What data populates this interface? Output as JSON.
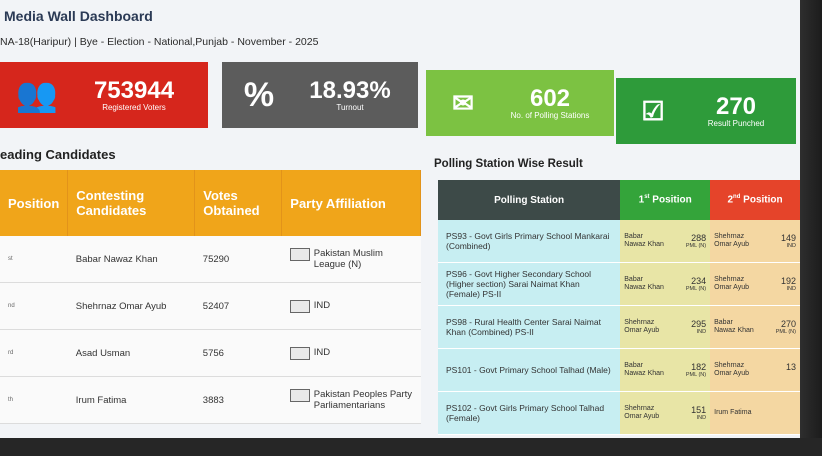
{
  "header": {
    "title": "Media Wall Dashboard",
    "subtitle": "NA-18(Haripur) | Bye - Election - National,Punjab - November - 2025"
  },
  "stats": [
    {
      "value": "753944",
      "label": "Registered Voters",
      "icon": "users-icon",
      "color": "#d6261c"
    },
    {
      "value": "18.93%",
      "label": "Turnout",
      "icon": "percent-icon",
      "color": "#5c5c5c"
    },
    {
      "value": "602",
      "label": "No. of Polling Stations",
      "icon": "ballot-box-icon",
      "color": "#7cc242"
    },
    {
      "value": "270",
      "label": "Result Punched",
      "icon": "clipboard-check-icon",
      "color": "#2e9b3a"
    }
  ],
  "candidates": {
    "title": "eading Candidates",
    "headers": [
      "Position",
      "Contesting Candidates",
      "Votes Obtained",
      "Party Affiliation"
    ],
    "rows": [
      {
        "position": "st",
        "name": "Babar Nawaz Khan",
        "votes": "75290",
        "party": "Pakistan Muslim League (N)"
      },
      {
        "position": "nd",
        "name": "Shehrnaz Omar Ayub",
        "votes": "52407",
        "party": "IND"
      },
      {
        "position": "rd",
        "name": "Asad Usman",
        "votes": "5756",
        "party": "IND"
      },
      {
        "position": "th",
        "name": "Irum Fatima",
        "votes": "3883",
        "party": "Pakistan Peoples Party Parliamentarians"
      }
    ]
  },
  "polling": {
    "title": "Polling Station Wise Result",
    "headers": {
      "station": "Polling Station",
      "first": "1",
      "first_sup": "st",
      "first_rest": " Position",
      "second": "2",
      "second_sup": "nd",
      "second_rest": " Position"
    },
    "rows": [
      {
        "station": "PS93 - Govt Girls Primary School Mankarai (Combined)",
        "p1_name": "Babar Nawaz Khan",
        "p1_votes": "288",
        "p1_party": "PML (N)",
        "p2_name": "Shehrnaz Omar Ayub",
        "p2_votes": "149",
        "p2_party": "IND"
      },
      {
        "station": "PS96 - Govt Higher Secondary School (Higher section) Sarai Naimat Khan (Female) PS-II",
        "p1_name": "Babar Nawaz Khan",
        "p1_votes": "234",
        "p1_party": "PML (N)",
        "p2_name": "Shehrnaz Omar Ayub",
        "p2_votes": "192",
        "p2_party": "IND"
      },
      {
        "station": "PS98 - Rural Health Center Sarai Naimat Khan (Combined) PS-II",
        "p1_name": "Shehrnaz Omar Ayub",
        "p1_votes": "295",
        "p1_party": "IND",
        "p2_name": "Babar Nawaz Khan",
        "p2_votes": "270",
        "p2_party": "PML (N)"
      },
      {
        "station": "PS101 - Govt Primary School Talhad (Male)",
        "p1_name": "Babar Nawaz Khan",
        "p1_votes": "182",
        "p1_party": "PML (N)",
        "p2_name": "Shehrnaz Omar Ayub",
        "p2_votes": "13",
        "p2_party": ""
      },
      {
        "station": "PS102 - Govt Girls Primary School Talhad (Female)",
        "p1_name": "Shehrnaz Omar Ayub",
        "p1_votes": "151",
        "p1_party": "IND",
        "p2_name": "Irum Fatima",
        "p2_votes": "",
        "p2_party": ""
      }
    ]
  }
}
